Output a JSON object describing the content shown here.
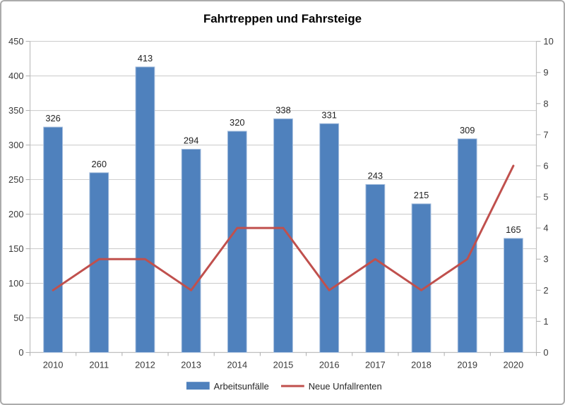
{
  "chart_data": {
    "type": "bar+line",
    "title": "Fahrtreppen und Fahrsteige",
    "categories": [
      "2010",
      "2011",
      "2012",
      "2013",
      "2014",
      "2015",
      "2016",
      "2017",
      "2018",
      "2019",
      "2020"
    ],
    "series": [
      {
        "name": "Arbeitsunfälle",
        "type": "bar",
        "axis": "left",
        "color": "#4F81BD",
        "border_color": "#A7BFDE",
        "values": [
          326,
          260,
          413,
          294,
          320,
          338,
          331,
          243,
          215,
          309,
          165
        ],
        "data_labels": true
      },
      {
        "name": "Neue Unfallrenten",
        "type": "line",
        "axis": "right",
        "color": "#C0504D",
        "values": [
          2,
          3,
          3,
          2,
          4,
          4,
          2,
          3,
          2,
          3,
          6
        ],
        "data_labels": false
      }
    ],
    "left_axis": {
      "min": 0,
      "max": 450,
      "step": 50,
      "tick_labels": [
        "0",
        "50",
        "100",
        "150",
        "200",
        "250",
        "300",
        "350",
        "400",
        "450"
      ]
    },
    "right_axis": {
      "min": 0,
      "max": 10,
      "step": 1,
      "tick_labels": [
        "0",
        "1",
        "2",
        "3",
        "4",
        "5",
        "6",
        "7",
        "8",
        "9",
        "10"
      ]
    },
    "grid": true,
    "legend_position": "bottom",
    "xlabel": "",
    "ylabel": ""
  },
  "colors": {
    "gridline": "#C9C9C9",
    "axis_line": "#BFBFBF",
    "tick": "#ACACAC",
    "background": "#FFFFFF",
    "frame_border": "#ABABAB"
  }
}
